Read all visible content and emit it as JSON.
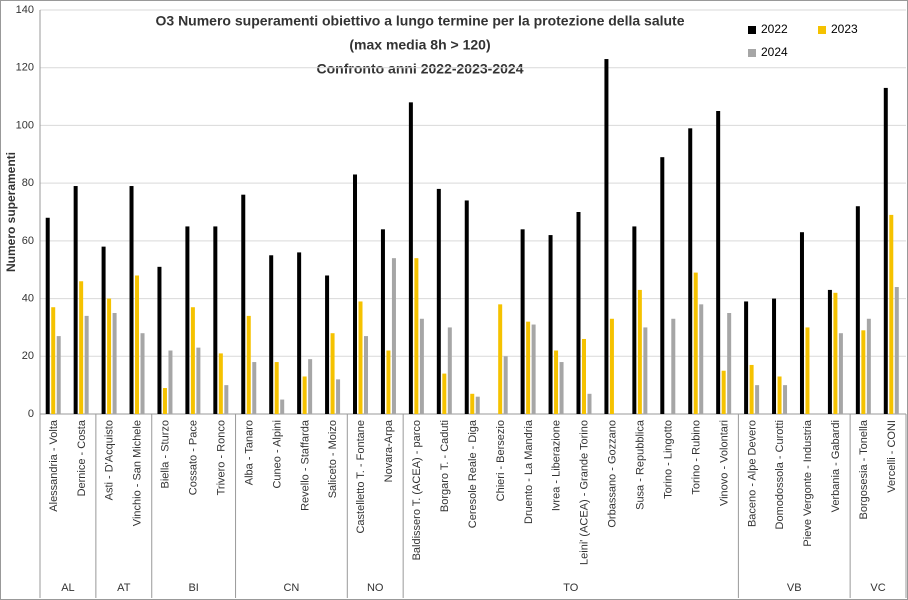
{
  "chart_data": {
    "type": "bar",
    "title": [
      "O3 Numero superamenti obiettivo a lungo termine per la protezione della salute",
      "(max media 8h > 120)",
      "Confronto anni 2022-2023-2024"
    ],
    "y_label": "Numero superamenti",
    "groups": [
      {
        "name": "AL",
        "categories": [
          "Alessandria - Volta",
          "Dernice - Costa"
        ]
      },
      {
        "name": "AT",
        "categories": [
          "Asti - D'Acquisto",
          "Vinchio - San Michele"
        ]
      },
      {
        "name": "BI",
        "categories": [
          "Biella - Sturzo",
          "Cossato - Pace",
          "Trivero - Ronco"
        ]
      },
      {
        "name": "CN",
        "categories": [
          "Alba - Tanaro",
          "Cuneo - Alpini",
          "Revello - Staffarda",
          "Saliceto - Moizo"
        ]
      },
      {
        "name": "NO",
        "categories": [
          "Castelletto T. - Fontane",
          "Novara-Arpa"
        ]
      },
      {
        "name": "TO",
        "categories": [
          "Baldissero T. (ACEA) - parco",
          "Borgaro T. - Caduti",
          "Ceresole Reale - Diga",
          "Chieri - Bersezio",
          "Druento - La Mandria",
          "Ivrea - Liberazione",
          "Leini' (ACEA) - Grande Torino",
          "Orbassano - Gozzano",
          "Susa - Repubblica",
          "Torino - Lingotto",
          "Torino - Rubino",
          "Vinovo - Volontari"
        ]
      },
      {
        "name": "VB",
        "categories": [
          "Baceno - Alpe Devero",
          "Domodossola - Curotti",
          "Pieve Vergonte - Industria",
          "Verbania - Gabardi"
        ]
      },
      {
        "name": "VC",
        "categories": [
          "Borgosesia - Tonella",
          "Vercelli - CONI"
        ]
      }
    ],
    "series": [
      {
        "name": "2022",
        "color": "#000000",
        "values": [
          68,
          79,
          58,
          79,
          51,
          65,
          65,
          76,
          55,
          56,
          48,
          83,
          64,
          108,
          78,
          74,
          null,
          64,
          62,
          70,
          123,
          65,
          89,
          99,
          105,
          39,
          40,
          63,
          43,
          72,
          113
        ]
      },
      {
        "name": "2023",
        "color": "#f5c200",
        "values": [
          37,
          46,
          40,
          48,
          9,
          37,
          21,
          34,
          18,
          13,
          28,
          39,
          22,
          54,
          14,
          7,
          38,
          32,
          22,
          26,
          33,
          43,
          null,
          49,
          15,
          17,
          13,
          30,
          42,
          29,
          69
        ]
      },
      {
        "name": "2024",
        "color": "#a6a6a6",
        "values": [
          27,
          34,
          35,
          28,
          22,
          23,
          10,
          18,
          5,
          19,
          12,
          27,
          54,
          33,
          30,
          6,
          20,
          31,
          18,
          7,
          null,
          30,
          33,
          38,
          35,
          10,
          10,
          null,
          28,
          33,
          44
        ]
      }
    ],
    "ylim": [
      0,
      140
    ],
    "yticks": [
      0,
      20,
      40,
      60,
      80,
      100,
      120,
      140
    ],
    "grid": true
  }
}
